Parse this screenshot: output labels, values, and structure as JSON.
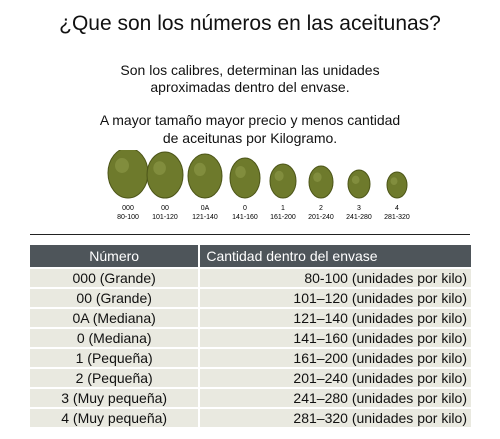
{
  "title": "¿Que son los números en las aceitunas?",
  "intro": [
    "Son los calibres, determinan las unidades",
    "aproximadas  dentro del envase.",
    "A mayor tamaño mayor precio y menos cantidad",
    "de aceitunas por Kilogramo."
  ],
  "olives": [
    {
      "code": "000",
      "range": "80-100"
    },
    {
      "code": "00",
      "range": "101-120"
    },
    {
      "code": "0A",
      "range": "121-140"
    },
    {
      "code": "0",
      "range": "141-160"
    },
    {
      "code": "1",
      "range": "161-200"
    },
    {
      "code": "2",
      "range": "201-240"
    },
    {
      "code": "3",
      "range": "241-280"
    },
    {
      "code": "4",
      "range": "281-320"
    }
  ],
  "table": {
    "headers": [
      "Número",
      "Cantidad dentro del envase"
    ],
    "rows": [
      [
        "000 (Grande)",
        "80-100 (unidades por kilo)"
      ],
      [
        "00 (Grande)",
        "101–120 (unidades por kilo)"
      ],
      [
        "0A (Mediana)",
        "121–140 (unidades por kilo)"
      ],
      [
        "0 (Mediana)",
        "141–160 (unidades por kilo)"
      ],
      [
        "1 (Pequeña)",
        "161–200 (unidades por kilo)"
      ],
      [
        "2 (Pequeña)",
        "201–240 (unidades por kilo)"
      ],
      [
        "3 (Muy pequeña)",
        "241–280 (unidades por kilo)"
      ],
      [
        "4 (Muy pequeña)",
        "281–320 (unidades por kilo)"
      ]
    ]
  }
}
